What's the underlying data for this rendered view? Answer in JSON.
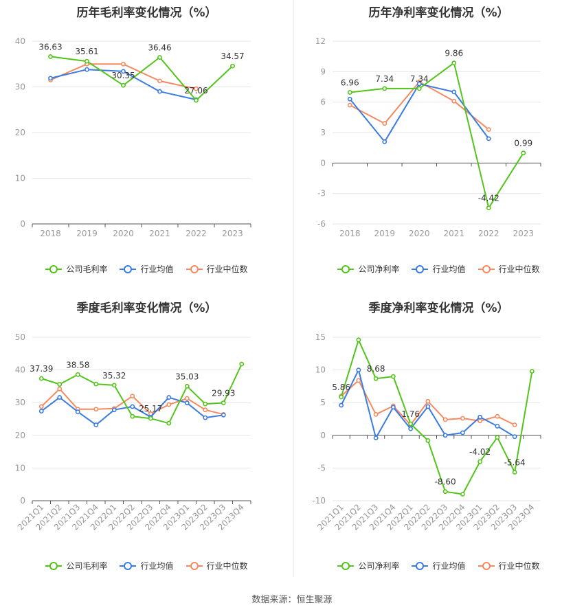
{
  "footer": {
    "source": "数据来源：恒生聚源"
  },
  "legend_markers": [
    "line-circle-icon",
    "line-circle-icon",
    "line-circle-icon"
  ],
  "chart_data": [
    {
      "id": "annual_gross",
      "type": "line",
      "title": "历年毛利率变化情况（%）",
      "categories": [
        "2018",
        "2019",
        "2020",
        "2021",
        "2022",
        "2023"
      ],
      "ylim": [
        0,
        40
      ],
      "yticks": [
        "0",
        "10",
        "20",
        "30",
        "40"
      ],
      "x_label_rotation": 0,
      "series": [
        {
          "name": "公司毛利率",
          "color": "#52c41a",
          "values": [
            36.63,
            35.61,
            30.35,
            36.46,
            27.06,
            34.57
          ]
        },
        {
          "name": "行业均值",
          "color": "#3a7be0",
          "values": [
            31.9,
            33.8,
            33.4,
            29.0,
            27.2,
            null
          ]
        },
        {
          "name": "行业中位数",
          "color": "#f5895f",
          "values": [
            31.5,
            35.0,
            35.0,
            31.3,
            29.6,
            null
          ]
        }
      ],
      "data_labels": [
        {
          "text": "36.63",
          "index": 0,
          "value": 36.63,
          "pos": "above"
        },
        {
          "text": "35.61",
          "index": 1,
          "value": 35.61,
          "pos": "above"
        },
        {
          "text": "30.35",
          "index": 2,
          "value": 30.35,
          "pos": "above"
        },
        {
          "text": "36.46",
          "index": 3,
          "value": 36.46,
          "pos": "above"
        },
        {
          "text": "27.06",
          "index": 4,
          "value": 27.06,
          "pos": "above"
        },
        {
          "text": "34.57",
          "index": 5,
          "value": 34.57,
          "pos": "above"
        }
      ]
    },
    {
      "id": "annual_net",
      "type": "line",
      "title": "历年净利率变化情况（%）",
      "categories": [
        "2018",
        "2019",
        "2020",
        "2021",
        "2022",
        "2023"
      ],
      "ylim": [
        -6,
        12
      ],
      "yticks": [
        "-6",
        "-3",
        "0",
        "3",
        "6",
        "9",
        "12"
      ],
      "x_label_rotation": 0,
      "series": [
        {
          "name": "公司净利率",
          "color": "#52c41a",
          "values": [
            6.96,
            7.34,
            7.34,
            9.86,
            -4.42,
            0.99
          ]
        },
        {
          "name": "行业均值",
          "color": "#3a7be0",
          "values": [
            6.3,
            2.1,
            7.8,
            7.0,
            2.4,
            null
          ]
        },
        {
          "name": "行业中位数",
          "color": "#f5895f",
          "values": [
            5.7,
            3.9,
            8.0,
            6.1,
            3.3,
            null
          ]
        }
      ],
      "data_labels": [
        {
          "text": "6.96",
          "index": 0,
          "value": 6.96,
          "pos": "above"
        },
        {
          "text": "7.34",
          "index": 1,
          "value": 7.34,
          "pos": "above"
        },
        {
          "text": "7.34",
          "index": 2,
          "value": 7.34,
          "pos": "above"
        },
        {
          "text": "9.86",
          "index": 3,
          "value": 9.86,
          "pos": "above"
        },
        {
          "text": "-4.42",
          "index": 4,
          "value": -4.42,
          "pos": "above"
        },
        {
          "text": "0.99",
          "index": 5,
          "value": 0.99,
          "pos": "above"
        }
      ]
    },
    {
      "id": "quarterly_gross",
      "type": "line",
      "title": "季度毛利率变化情况（%）",
      "categories": [
        "2021Q1",
        "2021Q2",
        "2021Q3",
        "2021Q4",
        "2022Q1",
        "2022Q2",
        "2022Q3",
        "2022Q4",
        "2023Q1",
        "2023Q2",
        "2023Q3",
        "2023Q4"
      ],
      "ylim": [
        0,
        50
      ],
      "yticks": [
        "0",
        "10",
        "20",
        "30",
        "40",
        "50"
      ],
      "x_label_rotation": -45,
      "series": [
        {
          "name": "公司毛利率",
          "color": "#52c41a",
          "values": [
            37.39,
            35.6,
            38.58,
            35.7,
            35.32,
            25.8,
            25.17,
            23.7,
            35.03,
            29.6,
            29.93,
            41.8
          ]
        },
        {
          "name": "行业均值",
          "color": "#3a7be0",
          "values": [
            27.4,
            31.6,
            27.2,
            23.2,
            27.8,
            28.8,
            25.6,
            31.6,
            29.9,
            25.4,
            26.2,
            null
          ]
        },
        {
          "name": "行业中位数",
          "color": "#f5895f",
          "values": [
            28.8,
            34.2,
            28.0,
            28.0,
            28.2,
            32.0,
            26.6,
            29.4,
            31.3,
            27.8,
            26.4,
            null
          ]
        }
      ],
      "data_labels": [
        {
          "text": "37.39",
          "index": 0,
          "value": 37.39,
          "pos": "above"
        },
        {
          "text": "38.58",
          "index": 2,
          "value": 38.58,
          "pos": "above"
        },
        {
          "text": "35.32",
          "index": 4,
          "value": 35.32,
          "pos": "above"
        },
        {
          "text": "25.17",
          "index": 6,
          "value": 25.17,
          "pos": "above"
        },
        {
          "text": "35.03",
          "index": 8,
          "value": 35.03,
          "pos": "above"
        },
        {
          "text": "29.93",
          "index": 10,
          "value": 29.93,
          "pos": "above"
        }
      ]
    },
    {
      "id": "quarterly_net",
      "type": "line",
      "title": "季度净利率变化情况（%）",
      "categories": [
        "2021Q1",
        "2021Q2",
        "2021Q3",
        "2021Q4",
        "2022Q1",
        "2022Q2",
        "2022Q3",
        "2022Q4",
        "2023Q1",
        "2023Q2",
        "2023Q3",
        "2023Q4"
      ],
      "ylim": [
        -10,
        15
      ],
      "yticks": [
        "-10",
        "-5",
        "0",
        "5",
        "10",
        "15"
      ],
      "x_label_rotation": -45,
      "series": [
        {
          "name": "公司净利率",
          "color": "#52c41a",
          "values": [
            5.86,
            14.6,
            8.68,
            9.0,
            1.76,
            -0.8,
            -8.6,
            -9.0,
            -4.02,
            -0.3,
            -5.64,
            9.8
          ]
        },
        {
          "name": "行业均值",
          "color": "#3a7be0",
          "values": [
            4.6,
            10.0,
            -0.4,
            4.3,
            1.0,
            4.4,
            0.0,
            0.4,
            2.8,
            1.4,
            -0.2,
            null
          ]
        },
        {
          "name": "行业中位数",
          "color": "#f5895f",
          "values": [
            6.0,
            8.4,
            3.2,
            4.5,
            1.6,
            5.2,
            2.4,
            2.6,
            2.2,
            2.9,
            1.6,
            null
          ]
        }
      ],
      "data_labels": [
        {
          "text": "5.86",
          "index": 0,
          "value": 5.86,
          "pos": "above"
        },
        {
          "text": "8.68",
          "index": 2,
          "value": 8.68,
          "pos": "above"
        },
        {
          "text": "1.76",
          "index": 4,
          "value": 1.76,
          "pos": "above"
        },
        {
          "text": "-8.60",
          "index": 6,
          "value": -8.6,
          "pos": "above"
        },
        {
          "text": "-4.02",
          "index": 8,
          "value": -4.02,
          "pos": "above"
        },
        {
          "text": "-5.64",
          "index": 10,
          "value": -5.64,
          "pos": "above"
        }
      ]
    }
  ]
}
